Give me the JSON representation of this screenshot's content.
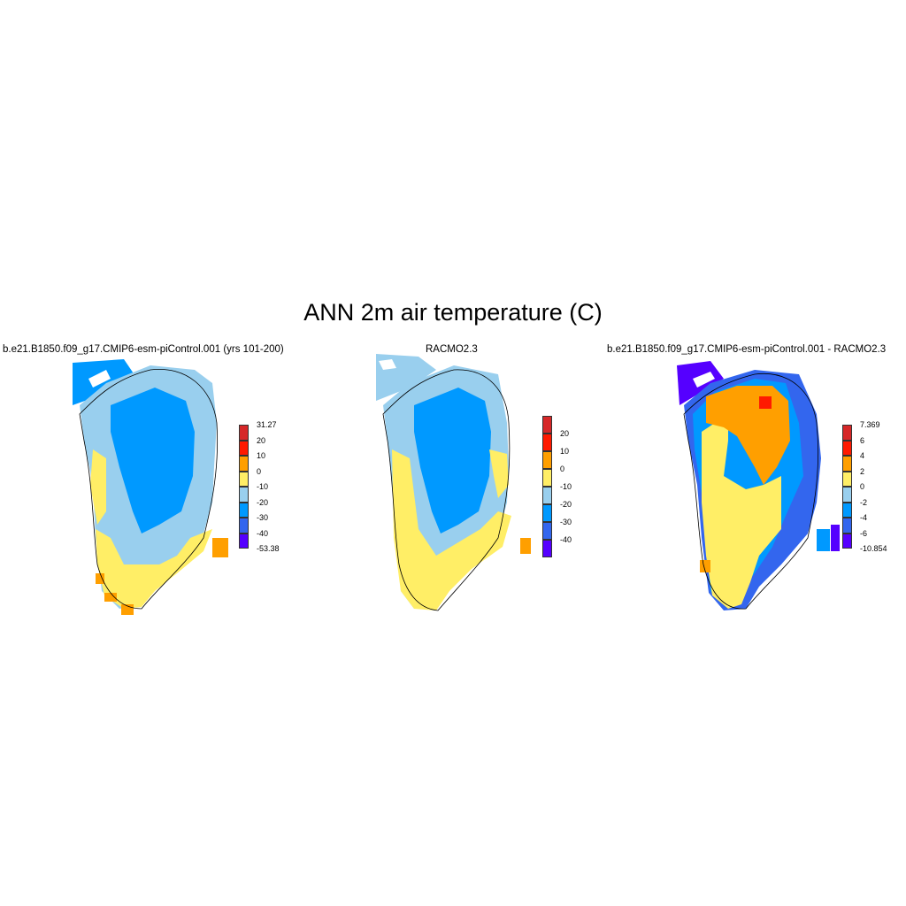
{
  "title": "ANN 2m air temperature (C)",
  "panels": [
    {
      "title": "b.e21.B1850.f09_g17.CMIP6-esm-piControl.001 (yrs 101-200)",
      "colorbar": {
        "labels": [
          "31.27",
          "20",
          "10",
          "0",
          "-10",
          "-20",
          "-30",
          "-40",
          "-53.38"
        ],
        "colors": [
          "#d62728",
          "#ff1a00",
          "#ff9f00",
          "#ffee66",
          "#99cfee",
          "#0099ff",
          "#3366ee",
          "#5500ff"
        ]
      }
    },
    {
      "title": "RACMO2.3",
      "colorbar": {
        "labels": [
          "20",
          "10",
          "0",
          "-10",
          "-20",
          "-30",
          "-40"
        ],
        "colors": [
          "#d62728",
          "#ff1a00",
          "#ff9f00",
          "#ffee66",
          "#99cfee",
          "#0099ff",
          "#3366ee",
          "#5500ff"
        ]
      }
    },
    {
      "title": "b.e21.B1850.f09_g17.CMIP6-esm-piControl.001 - RACMO2.3",
      "colorbar": {
        "labels": [
          "7.369",
          "6",
          "4",
          "2",
          "0",
          "-2",
          "-4",
          "-6",
          "-10.854"
        ],
        "colors": [
          "#d62728",
          "#ff1a00",
          "#ff9f00",
          "#ffee66",
          "#99cfee",
          "#0099ff",
          "#3366ee",
          "#5500ff"
        ]
      }
    }
  ]
}
